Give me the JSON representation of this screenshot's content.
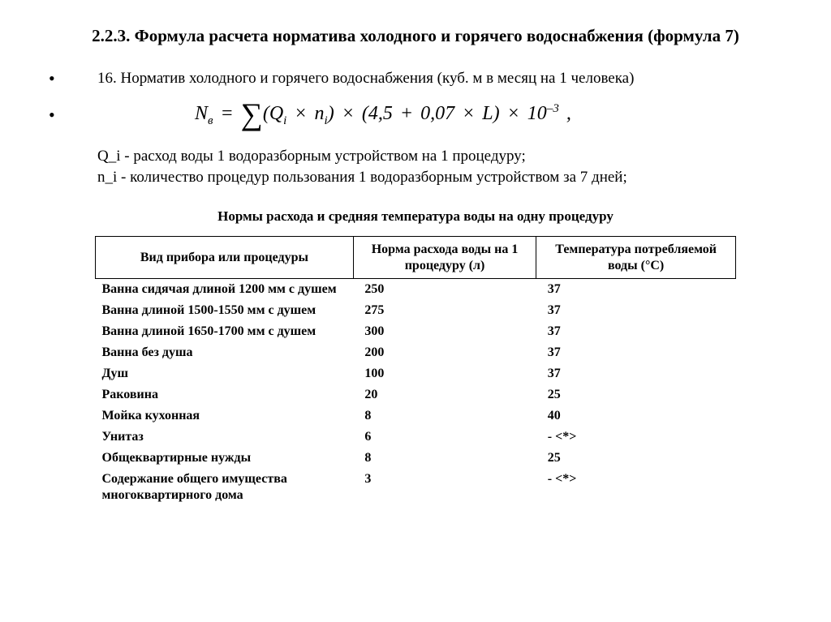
{
  "title": "2.2.3. Формула расчета норматива холодного и горячего водоснабжения (формула 7)",
  "item16": "16. Норматив холодного и горячего водоснабжения (куб. м в месяц на 1 человека)",
  "def_q": "Q_i - расход воды 1 водоразборным устройством на 1 процедуру;",
  "def_n": "n_i - количество процедур пользования 1 водоразборным устройством за 7 дней;",
  "table_title": "Нормы расхода и средняя температура воды на одну процедуру",
  "columns": {
    "c1": "Вид прибора или процедуры",
    "c2": "Норма расхода воды на 1 процедуру (л)",
    "c3": "Температура потребляемой воды (°C)"
  },
  "rows": [
    {
      "c1": "Ванна сидячая длиной 1200 мм с душем",
      "c2": "250",
      "c3": "37"
    },
    {
      "c1": "Ванна длиной 1500-1550 мм с душем",
      "c2": "275",
      "c3": "37"
    },
    {
      "c1": "Ванна длиной 1650-1700 мм с душем",
      "c2": "300",
      "c3": "37"
    },
    {
      "c1": "Ванна без душа",
      "c2": "200",
      "c3": "37"
    },
    {
      "c1": "Душ",
      "c2": "100",
      "c3": "37"
    },
    {
      "c1": "Раковина",
      "c2": "20",
      "c3": "25"
    },
    {
      "c1": "Мойка кухонная",
      "c2": "8",
      "c3": "40"
    },
    {
      "c1": "Унитаз",
      "c2": "6",
      "c3": "- <*>"
    },
    {
      "c1": "Общеквартирные нужды",
      "c2": "8",
      "c3": "25"
    },
    {
      "c1": "Содержание общего имущества многоквартирного дома",
      "c2": "3",
      "c3": "- <*>"
    }
  ]
}
